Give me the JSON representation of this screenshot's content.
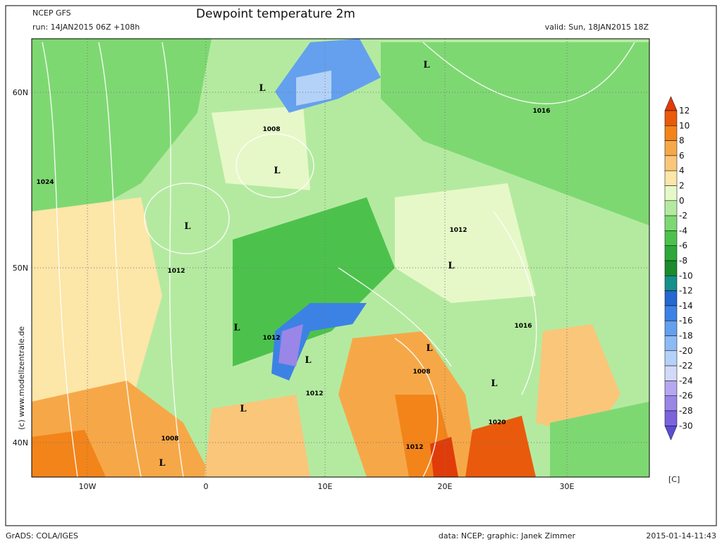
{
  "header": {
    "model": "NCEP GFS",
    "run": "run: 14JAN2015 06Z +108h",
    "title": "Dewpoint temperature 2m",
    "valid": "valid: Sun, 18JAN2015 18Z"
  },
  "map": {
    "lat_labels": [
      "60N",
      "50N",
      "40N"
    ],
    "lon_labels": [
      "10W",
      "0",
      "10E",
      "20E",
      "30E"
    ],
    "pressure_labels": [
      "1008",
      "1024",
      "1016",
      "1012",
      "1012",
      "1012",
      "1016",
      "1008",
      "1012",
      "1008",
      "1020",
      "1012"
    ],
    "lows": [
      "L",
      "L",
      "L",
      "L",
      "L",
      "L",
      "L",
      "L",
      "L",
      "L",
      "L"
    ],
    "watermark": "(c) www.modellzentrale.de"
  },
  "colorbar": {
    "labels": [
      12,
      10,
      8,
      6,
      4,
      2,
      0,
      -2,
      -4,
      -6,
      -8,
      -10,
      -12,
      -14,
      -16,
      -18,
      -20,
      -22,
      -24,
      -26,
      -28,
      -30
    ],
    "colors": [
      "#e03c0a",
      "#ea5a0c",
      "#f2841a",
      "#f6a848",
      "#fac67a",
      "#fce6a8",
      "#e6f8c8",
      "#b4eaa0",
      "#7ed872",
      "#4cc24c",
      "#2ea83a",
      "#1a8c2c",
      "#16908a",
      "#2468d0",
      "#3c82e4",
      "#64a0ee",
      "#8cbaf4",
      "#b4d2f8",
      "#d2daf8",
      "#b6a8f0",
      "#9a86e6",
      "#7c64dc",
      "#5a4ed2"
    ],
    "unit": "[C]"
  },
  "footer": {
    "software": "GrADS: COLA/IGES",
    "credit": "data: NCEP; graphic: Janek Zimmer",
    "timestamp": "2015-01-14-11:43"
  }
}
